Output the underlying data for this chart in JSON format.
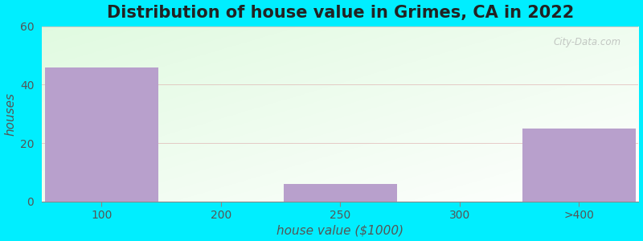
{
  "title": "Distribution of house value in Grimes, CA in 2022",
  "xlabel": "house value ($1000)",
  "ylabel": "houses",
  "bar_labels": [
    "100",
    "200",
    "250",
    "300",
    ">400"
  ],
  "bar_values": [
    46,
    0,
    6,
    0,
    25
  ],
  "bar_color": "#b8a0cc",
  "ylim": [
    0,
    60
  ],
  "yticks": [
    0,
    20,
    40,
    60
  ],
  "background_outer": "#00eeff",
  "grid_color": "#ddaaaa",
  "title_fontsize": 15,
  "axis_label_fontsize": 11,
  "tick_fontsize": 10,
  "watermark_text": "City-Data.com"
}
